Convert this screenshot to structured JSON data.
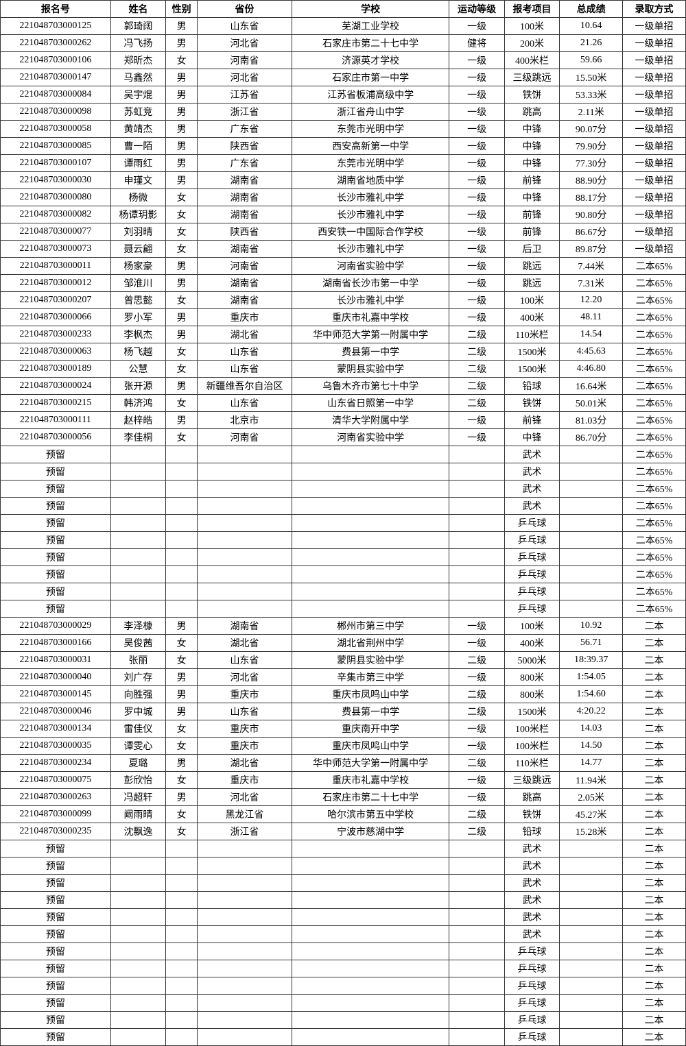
{
  "columns": [
    "报名号",
    "姓名",
    "性别",
    "省份",
    "学校",
    "运动等级",
    "报考项目",
    "总成绩",
    "录取方式"
  ],
  "rows": [
    [
      "221048703000125",
      "郭琦阔",
      "男",
      "山东省",
      "芜湖工业学校",
      "一级",
      "100米",
      "10.64",
      "一级单招"
    ],
    [
      "221048703000262",
      "冯飞扬",
      "男",
      "河北省",
      "石家庄市第二十七中学",
      "健将",
      "200米",
      "21.26",
      "一级单招"
    ],
    [
      "221048703000106",
      "郑昕杰",
      "女",
      "河南省",
      "济源英才学校",
      "一级",
      "400米栏",
      "59.66",
      "一级单招"
    ],
    [
      "221048703000147",
      "马鑫然",
      "男",
      "河北省",
      "石家庄市第一中学",
      "一级",
      "三级跳远",
      "15.50米",
      "一级单招"
    ],
    [
      "221048703000084",
      "吴宇焜",
      "男",
      "江苏省",
      "江苏省板浦高级中学",
      "一级",
      "铁饼",
      "53.33米",
      "一级单招"
    ],
    [
      "221048703000098",
      "苏虹竞",
      "男",
      "浙江省",
      "浙江省舟山中学",
      "一级",
      "跳高",
      "2.11米",
      "一级单招"
    ],
    [
      "221048703000058",
      "黄靖杰",
      "男",
      "广东省",
      "东莞市光明中学",
      "一级",
      "中锋",
      "90.07分",
      "一级单招"
    ],
    [
      "221048703000085",
      "曹一陌",
      "男",
      "陕西省",
      "西安高新第一中学",
      "一级",
      "中锋",
      "79.90分",
      "一级单招"
    ],
    [
      "221048703000107",
      "谭雨红",
      "男",
      "广东省",
      "东莞市光明中学",
      "一级",
      "中锋",
      "77.30分",
      "一级单招"
    ],
    [
      "221048703000030",
      "申瑾文",
      "男",
      "湖南省",
      "湖南省地质中学",
      "一级",
      "前锋",
      "88.90分",
      "一级单招"
    ],
    [
      "221048703000080",
      "杨微",
      "女",
      "湖南省",
      "长沙市雅礼中学",
      "一级",
      "中锋",
      "88.17分",
      "一级单招"
    ],
    [
      "221048703000082",
      "杨谭玥影",
      "女",
      "湖南省",
      "长沙市雅礼中学",
      "一级",
      "前锋",
      "90.80分",
      "一级单招"
    ],
    [
      "221048703000077",
      "刘羽晴",
      "女",
      "陕西省",
      "西安铁一中国际合作学校",
      "一级",
      "前锋",
      "86.67分",
      "一级单招"
    ],
    [
      "221048703000073",
      "聂云翩",
      "女",
      "湖南省",
      "长沙市雅礼中学",
      "一级",
      "后卫",
      "89.87分",
      "一级单招"
    ],
    [
      "221048703000011",
      "杨家豪",
      "男",
      "河南省",
      "河南省实验中学",
      "一级",
      "跳远",
      "7.44米",
      "二本65%"
    ],
    [
      "221048703000012",
      "邹淮川",
      "男",
      "湖南省",
      "湖南省长沙市第一中学",
      "一级",
      "跳远",
      "7.31米",
      "二本65%"
    ],
    [
      "221048703000207",
      "曾思懿",
      "女",
      "湖南省",
      "长沙市雅礼中学",
      "一级",
      "100米",
      "12.20",
      "二本65%"
    ],
    [
      "221048703000066",
      "罗小军",
      "男",
      "重庆市",
      "重庆市礼嘉中学校",
      "一级",
      "400米",
      "48.11",
      "二本65%"
    ],
    [
      "221048703000233",
      "李枫杰",
      "男",
      "湖北省",
      "华中师范大学第一附属中学",
      "二级",
      "110米栏",
      "14.54",
      "二本65%"
    ],
    [
      "221048703000063",
      "杨飞越",
      "女",
      "山东省",
      "费县第一中学",
      "二级",
      "1500米",
      "4:45.63",
      "二本65%"
    ],
    [
      "221048703000189",
      "公慧",
      "女",
      "山东省",
      "蒙阴县实验中学",
      "二级",
      "1500米",
      "4:46.80",
      "二本65%"
    ],
    [
      "221048703000024",
      "张开源",
      "男",
      "新疆维吾尔自治区",
      "乌鲁木齐市第七十中学",
      "二级",
      "铅球",
      "16.64米",
      "二本65%"
    ],
    [
      "221048703000215",
      "韩济鸿",
      "女",
      "山东省",
      "山东省日照第一中学",
      "二级",
      "铁饼",
      "50.01米",
      "二本65%"
    ],
    [
      "221048703000111",
      "赵梓皓",
      "男",
      "北京市",
      "清华大学附属中学",
      "一级",
      "前锋",
      "81.03分",
      "二本65%"
    ],
    [
      "221048703000056",
      "李佳桐",
      "女",
      "河南省",
      "河南省实验中学",
      "一级",
      "中锋",
      "86.70分",
      "二本65%"
    ],
    [
      "预留",
      "",
      "",
      "",
      "",
      "",
      "武术",
      "",
      "二本65%"
    ],
    [
      "预留",
      "",
      "",
      "",
      "",
      "",
      "武术",
      "",
      "二本65%"
    ],
    [
      "预留",
      "",
      "",
      "",
      "",
      "",
      "武术",
      "",
      "二本65%"
    ],
    [
      "预留",
      "",
      "",
      "",
      "",
      "",
      "武术",
      "",
      "二本65%"
    ],
    [
      "预留",
      "",
      "",
      "",
      "",
      "",
      "乒乓球",
      "",
      "二本65%"
    ],
    [
      "预留",
      "",
      "",
      "",
      "",
      "",
      "乒乓球",
      "",
      "二本65%"
    ],
    [
      "预留",
      "",
      "",
      "",
      "",
      "",
      "乒乓球",
      "",
      "二本65%"
    ],
    [
      "预留",
      "",
      "",
      "",
      "",
      "",
      "乒乓球",
      "",
      "二本65%"
    ],
    [
      "预留",
      "",
      "",
      "",
      "",
      "",
      "乒乓球",
      "",
      "二本65%"
    ],
    [
      "预留",
      "",
      "",
      "",
      "",
      "",
      "乒乓球",
      "",
      "二本65%"
    ],
    [
      "221048703000029",
      "李泽槺",
      "男",
      "湖南省",
      "郴州市第三中学",
      "一级",
      "100米",
      "10.92",
      "二本"
    ],
    [
      "221048703000166",
      "吴俊茜",
      "女",
      "湖北省",
      "湖北省荆州中学",
      "一级",
      "400米",
      "56.71",
      "二本"
    ],
    [
      "221048703000031",
      "张丽",
      "女",
      "山东省",
      "蒙阴县实验中学",
      "二级",
      "5000米",
      "18:39.37",
      "二本"
    ],
    [
      "221048703000040",
      "刘广存",
      "男",
      "河北省",
      "辛集市第三中学",
      "一级",
      "800米",
      "1:54.05",
      "二本"
    ],
    [
      "221048703000145",
      "向胜强",
      "男",
      "重庆市",
      "重庆市凤鸣山中学",
      "二级",
      "800米",
      "1:54.60",
      "二本"
    ],
    [
      "221048703000046",
      "罗中城",
      "男",
      "山东省",
      "费县第一中学",
      "二级",
      "1500米",
      "4:20.22",
      "二本"
    ],
    [
      "221048703000134",
      "雷佳仪",
      "女",
      "重庆市",
      "重庆南开中学",
      "一级",
      "100米栏",
      "14.03",
      "二本"
    ],
    [
      "221048703000035",
      "谭雯心",
      "女",
      "重庆市",
      "重庆市凤鸣山中学",
      "一级",
      "100米栏",
      "14.50",
      "二本"
    ],
    [
      "221048703000234",
      "夏璐",
      "男",
      "湖北省",
      "华中师范大学第一附属中学",
      "二级",
      "110米栏",
      "14.77",
      "二本"
    ],
    [
      "221048703000075",
      "彭欣怡",
      "女",
      "重庆市",
      "重庆市礼嘉中学校",
      "一级",
      "三级跳远",
      "11.94米",
      "二本"
    ],
    [
      "221048703000263",
      "冯超轩",
      "男",
      "河北省",
      "石家庄市第二十七中学",
      "一级",
      "跳高",
      "2.05米",
      "二本"
    ],
    [
      "221048703000099",
      "阚雨晴",
      "女",
      "黑龙江省",
      "哈尔滨市第五中学校",
      "二级",
      "铁饼",
      "45.27米",
      "二本"
    ],
    [
      "221048703000235",
      "沈飘逸",
      "女",
      "浙江省",
      "宁波市慈湖中学",
      "二级",
      "铅球",
      "15.28米",
      "二本"
    ],
    [
      "预留",
      "",
      "",
      "",
      "",
      "",
      "武术",
      "",
      "二本"
    ],
    [
      "预留",
      "",
      "",
      "",
      "",
      "",
      "武术",
      "",
      "二本"
    ],
    [
      "预留",
      "",
      "",
      "",
      "",
      "",
      "武术",
      "",
      "二本"
    ],
    [
      "预留",
      "",
      "",
      "",
      "",
      "",
      "武术",
      "",
      "二本"
    ],
    [
      "预留",
      "",
      "",
      "",
      "",
      "",
      "武术",
      "",
      "二本"
    ],
    [
      "预留",
      "",
      "",
      "",
      "",
      "",
      "武术",
      "",
      "二本"
    ],
    [
      "预留",
      "",
      "",
      "",
      "",
      "",
      "乒乓球",
      "",
      "二本"
    ],
    [
      "预留",
      "",
      "",
      "",
      "",
      "",
      "乒乓球",
      "",
      "二本"
    ],
    [
      "预留",
      "",
      "",
      "",
      "",
      "",
      "乒乓球",
      "",
      "二本"
    ],
    [
      "预留",
      "",
      "",
      "",
      "",
      "",
      "乒乓球",
      "",
      "二本"
    ],
    [
      "预留",
      "",
      "",
      "",
      "",
      "",
      "乒乓球",
      "",
      "二本"
    ],
    [
      "预留",
      "",
      "",
      "",
      "",
      "",
      "乒乓球",
      "",
      "二本"
    ]
  ]
}
